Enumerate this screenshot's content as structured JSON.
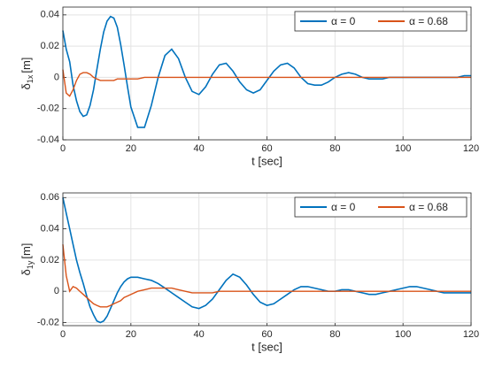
{
  "chart_data": [
    {
      "type": "line",
      "xlabel": "t [sec]",
      "ylabel": {
        "symbol": "δ",
        "subscript": "1x",
        "unit": "[m]"
      },
      "x": [
        0,
        1,
        2,
        3,
        4,
        5,
        6,
        7,
        8,
        9,
        10,
        11,
        12,
        13,
        14,
        15,
        16,
        17,
        18,
        19,
        20,
        22,
        24,
        26,
        28,
        30,
        32,
        34,
        36,
        38,
        40,
        42,
        44,
        46,
        48,
        50,
        52,
        54,
        56,
        58,
        60,
        62,
        64,
        66,
        68,
        70,
        72,
        74,
        76,
        78,
        80,
        82,
        84,
        86,
        88,
        90,
        92,
        94,
        96,
        98,
        100,
        102,
        104,
        106,
        108,
        110,
        112,
        114,
        116,
        118,
        120
      ],
      "xlim": [
        0,
        120
      ],
      "xticks": [
        0,
        20,
        40,
        60,
        80,
        100,
        120
      ],
      "ylim": [
        -0.04,
        0.045
      ],
      "yticks": [
        -0.04,
        -0.02,
        0,
        0.02,
        0.04
      ],
      "grid": true,
      "legend": "northeast",
      "series": [
        {
          "name": "α = 0",
          "color": "#0072bd",
          "values": [
            0.03,
            0.018,
            0.01,
            -0.005,
            -0.015,
            -0.022,
            -0.025,
            -0.024,
            -0.018,
            -0.008,
            0.005,
            0.018,
            0.029,
            0.036,
            0.039,
            0.038,
            0.032,
            0.021,
            0.008,
            -0.006,
            -0.019,
            -0.032,
            -0.032,
            -0.018,
            0,
            0.014,
            0.018,
            0.012,
            0,
            -0.009,
            -0.011,
            -0.006,
            0.002,
            0.008,
            0.009,
            0.004,
            -0.003,
            -0.008,
            -0.01,
            -0.008,
            -0.002,
            0.004,
            0.008,
            0.009,
            0.006,
            0,
            -0.004,
            -0.005,
            -0.005,
            -0.003,
            0,
            0.002,
            0.003,
            0.002,
            0,
            -0.001,
            -0.001,
            -0.001,
            0,
            0,
            0,
            0,
            0,
            0,
            0,
            0,
            0,
            0,
            0,
            0.001,
            0.001
          ]
        },
        {
          "name": "α = 0.68",
          "color": "#d95319",
          "values": [
            0.005,
            -0.01,
            -0.012,
            -0.008,
            -0.002,
            0.002,
            0.003,
            0.003,
            0.002,
            0,
            -0.001,
            -0.002,
            -0.002,
            -0.002,
            -0.002,
            -0.002,
            -0.001,
            -0.001,
            -0.001,
            -0.001,
            -0.001,
            -0.001,
            0,
            0,
            0,
            0,
            0,
            0,
            0,
            0,
            0,
            0,
            0,
            0,
            0,
            0,
            0,
            0,
            0,
            0,
            0,
            0,
            0,
            0,
            0,
            0,
            0,
            0,
            0,
            0,
            0,
            0,
            0,
            0,
            0,
            0,
            0,
            0,
            0,
            0,
            0,
            0,
            0,
            0,
            0,
            0,
            0,
            0,
            0,
            0,
            0
          ]
        }
      ]
    },
    {
      "type": "line",
      "xlabel": "t [sec]",
      "ylabel": {
        "symbol": "δ",
        "subscript": "1y",
        "unit": "[m]"
      },
      "x": [
        0,
        1,
        2,
        3,
        4,
        5,
        6,
        7,
        8,
        9,
        10,
        11,
        12,
        13,
        14,
        15,
        16,
        17,
        18,
        19,
        20,
        22,
        24,
        26,
        28,
        30,
        32,
        34,
        36,
        38,
        40,
        42,
        44,
        46,
        48,
        50,
        52,
        54,
        56,
        58,
        60,
        62,
        64,
        66,
        68,
        70,
        72,
        74,
        76,
        78,
        80,
        82,
        84,
        86,
        88,
        90,
        92,
        94,
        96,
        98,
        100,
        102,
        104,
        106,
        108,
        110,
        112,
        114,
        116,
        118,
        120
      ],
      "xlim": [
        0,
        120
      ],
      "xticks": [
        0,
        20,
        40,
        60,
        80,
        100,
        120
      ],
      "ylim": [
        -0.022,
        0.063
      ],
      "yticks": [
        -0.02,
        0,
        0.02,
        0.04,
        0.06
      ],
      "grid": true,
      "legend": "northeast",
      "series": [
        {
          "name": "α = 0",
          "color": "#0072bd",
          "values": [
            0.06,
            0.05,
            0.04,
            0.03,
            0.02,
            0.012,
            0.005,
            -0.003,
            -0.01,
            -0.015,
            -0.019,
            -0.02,
            -0.019,
            -0.016,
            -0.011,
            -0.006,
            -0.001,
            0.003,
            0.006,
            0.008,
            0.009,
            0.009,
            0.008,
            0.007,
            0.005,
            0.002,
            -0.001,
            -0.004,
            -0.007,
            -0.01,
            -0.011,
            -0.009,
            -0.005,
            0.001,
            0.007,
            0.011,
            0.009,
            0.004,
            -0.002,
            -0.007,
            -0.009,
            -0.008,
            -0.005,
            -0.002,
            0.001,
            0.003,
            0.003,
            0.002,
            0.001,
            0,
            0,
            0.001,
            0.001,
            0,
            -0.001,
            -0.002,
            -0.002,
            -0.001,
            0,
            0.001,
            0.002,
            0.003,
            0.003,
            0.002,
            0.001,
            0,
            -0.001,
            -0.001,
            -0.001,
            -0.001,
            -0.001
          ]
        },
        {
          "name": "α = 0.68",
          "color": "#d95319",
          "values": [
            0.03,
            0.01,
            0,
            0.003,
            0.002,
            0,
            -0.002,
            -0.004,
            -0.006,
            -0.008,
            -0.009,
            -0.01,
            -0.01,
            -0.01,
            -0.009,
            -0.008,
            -0.007,
            -0.006,
            -0.004,
            -0.003,
            -0.002,
            0,
            0.001,
            0.002,
            0.002,
            0.002,
            0.002,
            0.001,
            0,
            -0.001,
            -0.001,
            -0.001,
            -0.001,
            0,
            0,
            0,
            0,
            0,
            0,
            0,
            0,
            0,
            0,
            0,
            0,
            0,
            0,
            0,
            0,
            0,
            0,
            0,
            0,
            0,
            0,
            0,
            0,
            0,
            0,
            0,
            0,
            0,
            0,
            0,
            0,
            0,
            0,
            0,
            0,
            0,
            0
          ]
        }
      ]
    }
  ]
}
